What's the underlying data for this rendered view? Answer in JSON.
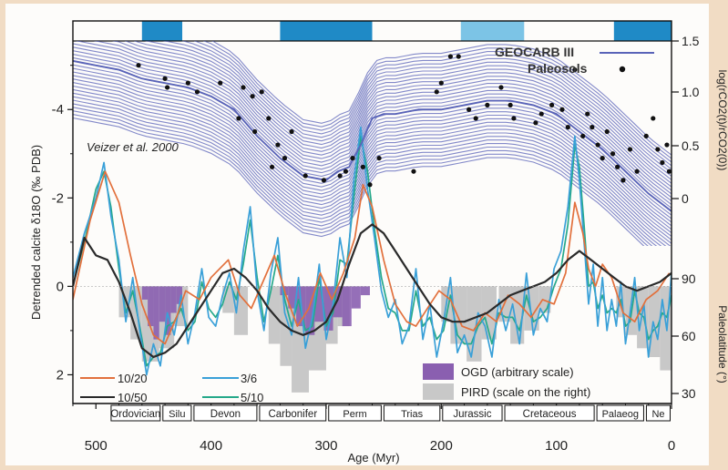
{
  "chart_data": {
    "type": "line",
    "xlabel": "Age (Myr)",
    "xlim": [
      520,
      0
    ],
    "x_ticks": [
      "500",
      "400",
      "300",
      "200",
      "100",
      "0"
    ],
    "left_axis": {
      "label": "Detrended calcite δ18O (‰ PDB)",
      "ylim": [
        2.65,
        -5.55
      ],
      "ticks": [
        "-4",
        "-2",
        "0",
        "2"
      ]
    },
    "right_axis_top": {
      "label": "log(rCO2(t)/rCO2(0))",
      "ticks": [
        "1.5",
        "1.0",
        "0.5",
        "0"
      ]
    },
    "right_axis_bottom": {
      "label": "Paleolatitude (°)",
      "ticks": [
        "90",
        "60",
        "30"
      ]
    },
    "annotation": "Veizer et al. 2000",
    "legend_top": [
      {
        "label": "GEOCARB III",
        "color": "#5963b8"
      },
      {
        "label": "Paleosols",
        "color": "#111111"
      }
    ],
    "legend_lines": [
      {
        "label": "10/20",
        "color": "#e2703c"
      },
      {
        "label": "3/6",
        "color": "#3aa0d8"
      },
      {
        "label": "10/50",
        "color": "#2a2a2a"
      },
      {
        "label": "5/10",
        "color": "#26a98a"
      }
    ],
    "legend_bars": [
      {
        "label": "OGD (arbitrary scale)",
        "color": "#8a5fb0"
      },
      {
        "label": "PIRD (scale on the right)",
        "color": "#c8c8c8"
      }
    ],
    "periods": [
      "Ordovician",
      "Silu",
      "Devon",
      "Carbonifer",
      "Perm",
      "Trias",
      "Jurassic",
      "Cretaceous",
      "Palaeog",
      "Ne"
    ],
    "period_bounds": [
      488,
      443,
      416,
      359,
      299,
      251,
      200,
      146,
      66,
      23,
      0
    ],
    "cold_bands": [
      {
        "from": 460,
        "to": 425,
        "shade": "dark"
      },
      {
        "from": 340,
        "to": 260,
        "shade": "dark"
      },
      {
        "from": 183,
        "to": 128,
        "shade": "light"
      },
      {
        "from": 50,
        "to": 0,
        "shade": "dark"
      }
    ],
    "series": [
      {
        "name": "10/20",
        "color": "#e2703c",
        "x": [
          520,
          505,
          492,
          480,
          470,
          460,
          450,
          440,
          430,
          422,
          410,
          400,
          385,
          375,
          365,
          355,
          345,
          335,
          325,
          315,
          305,
          295,
          285,
          275,
          268,
          260,
          250,
          240,
          230,
          222,
          212,
          202,
          192,
          182,
          172,
          162,
          152,
          142,
          132,
          122,
          112,
          102,
          92,
          84,
          77,
          72,
          66,
          60,
          52,
          42,
          32,
          22,
          12,
          2
        ],
        "y": [
          0.3,
          -1.5,
          -2.6,
          -1.9,
          -0.7,
          0.4,
          1.1,
          1.3,
          0.7,
          0.1,
          0.3,
          -0.2,
          -0.6,
          0.2,
          0.5,
          -0.1,
          -0.7,
          0.2,
          0.9,
          0.5,
          -0.3,
          0.3,
          -0.3,
          -1.1,
          -2.3,
          -1.8,
          -0.6,
          0.4,
          0.8,
          0.9,
          0.5,
          0.1,
          0.3,
          0.9,
          1.0,
          0.6,
          0.8,
          0.2,
          0.4,
          0.7,
          0.3,
          0.4,
          -0.3,
          -1.9,
          -1.2,
          -0.4,
          0.0,
          -0.5,
          -0.2,
          0.6,
          0.8,
          0.3,
          0.1,
          -0.3
        ]
      },
      {
        "name": "3/6",
        "color": "#3aa0d8",
        "x": [
          520,
          510,
          500,
          493,
          487,
          480,
          474,
          468,
          462,
          456,
          450,
          444,
          438,
          432,
          426,
          420,
          414,
          408,
          402,
          396,
          390,
          384,
          378,
          372,
          366,
          360,
          354,
          348,
          342,
          336,
          330,
          324,
          318,
          312,
          306,
          300,
          294,
          288,
          282,
          276,
          270,
          264,
          258,
          252,
          246,
          240,
          234,
          228,
          222,
          216,
          210,
          204,
          198,
          192,
          186,
          180,
          174,
          168,
          162,
          156,
          150,
          144,
          138,
          132,
          126,
          120,
          114,
          108,
          102,
          96,
          90,
          84,
          80,
          76,
          72,
          68,
          64,
          60,
          56,
          52,
          48,
          44,
          40,
          36,
          32,
          28,
          24,
          20,
          16,
          12,
          8,
          4,
          0
        ],
        "y": [
          -0.2,
          -1.2,
          -2.0,
          -2.8,
          -1.6,
          -0.6,
          0.8,
          -0.2,
          1.0,
          2.0,
          1.3,
          1.8,
          0.6,
          1.1,
          0.2,
          1.3,
          0.6,
          -0.4,
          0.7,
          0.9,
          0.2,
          -0.3,
          0.6,
          -0.8,
          -1.8,
          0.1,
          1.0,
          -0.3,
          -1.1,
          0.6,
          1.1,
          -0.2,
          1.4,
          0.7,
          -0.5,
          1.2,
          0.4,
          -1.1,
          -0.2,
          -2.4,
          -3.6,
          -2.2,
          -1.1,
          0.1,
          0.7,
          0.3,
          1.3,
          0.9,
          -0.4,
          1.2,
          0.4,
          1.6,
          0.8,
          -0.2,
          1.5,
          1.1,
          1.6,
          0.6,
          0.9,
          1.6,
          0.3,
          1.0,
          0.4,
          1.3,
          -0.3,
          1.1,
          0.5,
          0.8,
          -0.4,
          -0.8,
          -1.8,
          -3.4,
          -2.4,
          -1.0,
          0.4,
          -0.5,
          0.9,
          -0.2,
          1.0,
          0.3,
          0.9,
          -0.1,
          1.3,
          0.6,
          -0.2,
          1.0,
          0.4,
          1.6,
          0.8,
          1.2,
          0.3,
          1.0,
          -0.3
        ]
      },
      {
        "name": "5/10",
        "color": "#26a98a",
        "x": [
          520,
          510,
          500,
          493,
          487,
          480,
          474,
          468,
          462,
          456,
          450,
          444,
          438,
          432,
          426,
          420,
          414,
          408,
          402,
          396,
          390,
          384,
          378,
          372,
          366,
          360,
          354,
          348,
          342,
          336,
          330,
          324,
          318,
          312,
          306,
          300,
          294,
          288,
          282,
          276,
          270,
          264,
          258,
          252,
          246,
          240,
          234,
          228,
          222,
          216,
          210,
          204,
          198,
          192,
          186,
          180,
          174,
          168,
          162,
          156,
          150,
          144,
          138,
          132,
          126,
          120,
          114,
          108,
          102,
          96,
          90,
          84,
          80,
          76,
          72,
          68,
          64,
          60,
          56,
          52,
          48,
          44,
          40,
          36,
          32,
          28,
          24,
          20,
          16,
          12,
          8,
          4,
          0
        ],
        "y": [
          0.0,
          -1.0,
          -2.2,
          -2.6,
          -1.8,
          -0.4,
          0.6,
          0.1,
          0.9,
          1.8,
          1.6,
          1.5,
          0.9,
          0.8,
          0.5,
          1.0,
          0.8,
          -0.1,
          0.5,
          0.7,
          0.4,
          -0.1,
          0.3,
          -0.5,
          -1.5,
          -0.2,
          0.8,
          0.1,
          -0.7,
          0.3,
          0.9,
          0.3,
          1.0,
          0.9,
          -0.2,
          0.9,
          0.6,
          -0.6,
          -0.5,
          -2.0,
          -3.4,
          -2.6,
          -1.3,
          -0.2,
          0.5,
          0.6,
          1.0,
          1.0,
          0.1,
          0.9,
          0.7,
          1.2,
          1.0,
          0.2,
          1.1,
          1.3,
          1.3,
          0.9,
          0.7,
          1.3,
          0.6,
          0.7,
          0.7,
          1.0,
          0.2,
          0.8,
          0.7,
          0.5,
          0.0,
          -0.4,
          -1.4,
          -3.2,
          -2.7,
          -1.4,
          0.0,
          -0.1,
          0.5,
          0.2,
          0.6,
          0.5,
          0.6,
          0.3,
          0.9,
          0.8,
          0.1,
          0.6,
          0.7,
          1.2,
          1.0,
          0.9,
          0.6,
          0.7,
          0.2
        ]
      },
      {
        "name": "10/50",
        "color": "#2a2a2a",
        "x": [
          520,
          510,
          500,
          490,
          480,
          470,
          460,
          450,
          440,
          430,
          420,
          410,
          400,
          390,
          380,
          370,
          360,
          350,
          340,
          330,
          320,
          310,
          300,
          290,
          280,
          270,
          260,
          250,
          240,
          230,
          220,
          210,
          200,
          190,
          180,
          170,
          160,
          150,
          140,
          130,
          120,
          110,
          100,
          90,
          80,
          70,
          60,
          50,
          40,
          30,
          20,
          10,
          0
        ],
        "y": [
          0.0,
          -1.1,
          -0.7,
          -0.6,
          -0.1,
          0.6,
          1.4,
          1.6,
          1.5,
          1.3,
          0.9,
          0.5,
          0.1,
          -0.3,
          -0.4,
          -0.2,
          0.1,
          0.5,
          0.8,
          1.0,
          1.1,
          1.0,
          0.8,
          0.3,
          -0.5,
          -1.2,
          -1.4,
          -1.2,
          -0.8,
          -0.4,
          0.0,
          0.4,
          0.7,
          0.8,
          0.8,
          0.7,
          0.6,
          0.4,
          0.2,
          0.1,
          0.0,
          -0.1,
          -0.3,
          -0.6,
          -0.8,
          -0.6,
          -0.4,
          -0.2,
          0.0,
          0.1,
          0.0,
          -0.1,
          -0.3
        ]
      },
      {
        "name": "GEOCARB III",
        "color": "#5963b8",
        "x": [
          520,
          500,
          480,
          460,
          440,
          420,
          400,
          380,
          360,
          340,
          320,
          300,
          290,
          280,
          270,
          260,
          250,
          240,
          220,
          200,
          180,
          160,
          140,
          120,
          100,
          80,
          60,
          40,
          20,
          0
        ],
        "y": [
          -5.1,
          -5.0,
          -4.9,
          -4.7,
          -4.6,
          -4.5,
          -4.3,
          -4.0,
          -3.4,
          -2.9,
          -2.5,
          -2.4,
          -2.6,
          -2.7,
          -3.2,
          -3.8,
          -3.9,
          -3.9,
          -4.0,
          -4.0,
          -4.1,
          -4.2,
          -4.2,
          -4.1,
          -3.9,
          -3.5,
          -3.1,
          -2.6,
          -2.1,
          -1.7
        ]
      }
    ],
    "paleosols_points": [
      {
        "x": 463,
        "y": -5.0
      },
      {
        "x": 440,
        "y": -4.7
      },
      {
        "x": 438,
        "y": -4.5
      },
      {
        "x": 420,
        "y": -4.6
      },
      {
        "x": 412,
        "y": -4.4
      },
      {
        "x": 392,
        "y": -4.6
      },
      {
        "x": 372,
        "y": -4.5
      },
      {
        "x": 364,
        "y": -4.3
      },
      {
        "x": 356,
        "y": -4.4
      },
      {
        "x": 376,
        "y": -3.8
      },
      {
        "x": 362,
        "y": -3.5
      },
      {
        "x": 350,
        "y": -3.8
      },
      {
        "x": 342,
        "y": -3.2
      },
      {
        "x": 336,
        "y": -2.9
      },
      {
        "x": 347,
        "y": -2.7
      },
      {
        "x": 330,
        "y": -3.5
      },
      {
        "x": 318,
        "y": -2.5
      },
      {
        "x": 302,
        "y": -2.4
      },
      {
        "x": 288,
        "y": -2.5
      },
      {
        "x": 283,
        "y": -2.6
      },
      {
        "x": 277,
        "y": -2.9
      },
      {
        "x": 268,
        "y": -2.7
      },
      {
        "x": 262,
        "y": -2.3
      },
      {
        "x": 254,
        "y": -2.9
      },
      {
        "x": 224,
        "y": -2.6
      },
      {
        "x": 204,
        "y": -4.4
      },
      {
        "x": 200,
        "y": -4.6
      },
      {
        "x": 192,
        "y": -5.2
      },
      {
        "x": 185,
        "y": -5.2
      },
      {
        "x": 176,
        "y": -4.0
      },
      {
        "x": 170,
        "y": -3.8
      },
      {
        "x": 160,
        "y": -4.1
      },
      {
        "x": 148,
        "y": -4.5
      },
      {
        "x": 140,
        "y": -4.1
      },
      {
        "x": 137,
        "y": -3.8
      },
      {
        "x": 118,
        "y": -3.7
      },
      {
        "x": 113,
        "y": -3.9
      },
      {
        "x": 104,
        "y": -4.1
      },
      {
        "x": 95,
        "y": -4.0
      },
      {
        "x": 90,
        "y": -3.6
      },
      {
        "x": 84,
        "y": -4.9
      },
      {
        "x": 77,
        "y": -3.4
      },
      {
        "x": 73,
        "y": -3.9
      },
      {
        "x": 69,
        "y": -3.6
      },
      {
        "x": 64,
        "y": -3.2
      },
      {
        "x": 60,
        "y": -2.9
      },
      {
        "x": 56,
        "y": -3.5
      },
      {
        "x": 51,
        "y": -3.0
      },
      {
        "x": 47,
        "y": -2.7
      },
      {
        "x": 42,
        "y": -2.4
      },
      {
        "x": 36,
        "y": -3.1
      },
      {
        "x": 30,
        "y": -2.6
      },
      {
        "x": 22,
        "y": -3.4
      },
      {
        "x": 16,
        "y": -3.8
      },
      {
        "x": 12,
        "y": -3.1
      },
      {
        "x": 8,
        "y": -2.8
      },
      {
        "x": 4,
        "y": -3.2
      },
      {
        "x": 2,
        "y": -2.6
      }
    ],
    "ogd_bars": [
      {
        "x0": 460,
        "x1": 455,
        "h": 0.3
      },
      {
        "x0": 455,
        "x1": 450,
        "h": 0.9
      },
      {
        "x0": 450,
        "x1": 445,
        "h": 1.2
      },
      {
        "x0": 445,
        "x1": 440,
        "h": 0.8
      },
      {
        "x0": 440,
        "x1": 435,
        "h": 1.1
      },
      {
        "x0": 435,
        "x1": 430,
        "h": 0.6
      },
      {
        "x0": 430,
        "x1": 425,
        "h": 0.4
      },
      {
        "x0": 340,
        "x1": 333,
        "h": 0.2
      },
      {
        "x0": 333,
        "x1": 326,
        "h": 0.5
      },
      {
        "x0": 326,
        "x1": 318,
        "h": 0.9
      },
      {
        "x0": 318,
        "x1": 310,
        "h": 1.1
      },
      {
        "x0": 310,
        "x1": 302,
        "h": 0.8
      },
      {
        "x0": 302,
        "x1": 294,
        "h": 1.0
      },
      {
        "x0": 294,
        "x1": 286,
        "h": 0.7
      },
      {
        "x0": 286,
        "x1": 278,
        "h": 0.9
      },
      {
        "x0": 278,
        "x1": 270,
        "h": 0.5
      },
      {
        "x0": 270,
        "x1": 262,
        "h": 0.2
      }
    ],
    "pird_bars": [
      {
        "x0": 480,
        "x1": 470,
        "h": 0.7
      },
      {
        "x0": 470,
        "x1": 460,
        "h": 1.2
      },
      {
        "x0": 460,
        "x1": 445,
        "h": 1.7
      },
      {
        "x0": 445,
        "x1": 432,
        "h": 1.4
      },
      {
        "x0": 432,
        "x1": 420,
        "h": 0.9
      },
      {
        "x0": 390,
        "x1": 380,
        "h": 0.6
      },
      {
        "x0": 380,
        "x1": 368,
        "h": 1.1
      },
      {
        "x0": 350,
        "x1": 340,
        "h": 1.3
      },
      {
        "x0": 340,
        "x1": 330,
        "h": 1.8
      },
      {
        "x0": 330,
        "x1": 315,
        "h": 2.4
      },
      {
        "x0": 315,
        "x1": 300,
        "h": 1.9
      },
      {
        "x0": 300,
        "x1": 290,
        "h": 1.3
      },
      {
        "x0": 290,
        "x1": 280,
        "h": 0.9
      },
      {
        "x0": 200,
        "x1": 192,
        "h": 0.8
      },
      {
        "x0": 192,
        "x1": 178,
        "h": 1.3
      },
      {
        "x0": 178,
        "x1": 165,
        "h": 1.7
      },
      {
        "x0": 165,
        "x1": 152,
        "h": 1.2
      },
      {
        "x0": 150,
        "x1": 140,
        "h": 0.8
      },
      {
        "x0": 140,
        "x1": 128,
        "h": 1.3
      },
      {
        "x0": 128,
        "x1": 115,
        "h": 1.0
      },
      {
        "x0": 115,
        "x1": 105,
        "h": 0.6
      },
      {
        "x0": 48,
        "x1": 40,
        "h": 0.7
      },
      {
        "x0": 40,
        "x1": 30,
        "h": 1.1
      },
      {
        "x0": 30,
        "x1": 20,
        "h": 1.4
      },
      {
        "x0": 20,
        "x1": 10,
        "h": 1.6
      },
      {
        "x0": 10,
        "x1": 0,
        "h": 1.9
      }
    ]
  }
}
